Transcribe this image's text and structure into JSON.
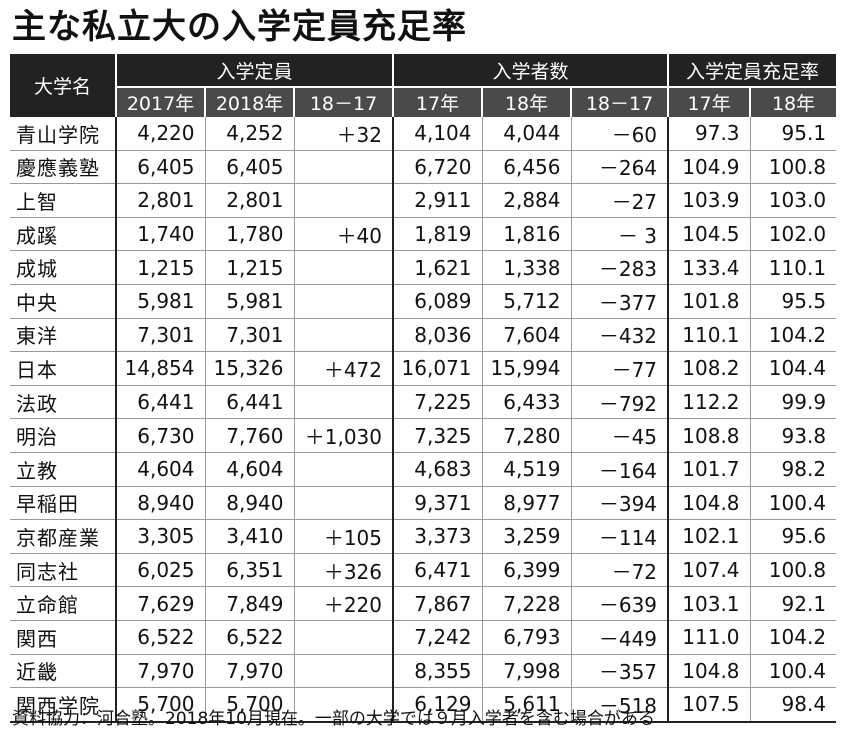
{
  "title": "主な私立大の入学定員充足率",
  "headers": {
    "university": "大学名",
    "capacity": "入学定員",
    "enrolled": "入学者数",
    "rate": "入学定員充足率",
    "cap_2017": "2017年",
    "cap_2018": "2018年",
    "cap_diff": "18－17",
    "enr_17": "17年",
    "enr_18": "18年",
    "enr_diff": "18－17",
    "rate_17": "17年",
    "rate_18": "18年"
  },
  "rows": [
    {
      "name": "青山学院",
      "cap17": "4,220",
      "cap18": "4,252",
      "capdiff": "＋32",
      "enr17": "4,104",
      "enr18": "4,044",
      "enrdiff": "－60",
      "rate17": "97.3",
      "rate18": "95.1"
    },
    {
      "name": "慶應義塾",
      "cap17": "6,405",
      "cap18": "6,405",
      "capdiff": "",
      "enr17": "6,720",
      "enr18": "6,456",
      "enrdiff": "－264",
      "rate17": "104.9",
      "rate18": "100.8"
    },
    {
      "name": "上智",
      "cap17": "2,801",
      "cap18": "2,801",
      "capdiff": "",
      "enr17": "2,911",
      "enr18": "2,884",
      "enrdiff": "－27",
      "rate17": "103.9",
      "rate18": "103.0"
    },
    {
      "name": "成蹊",
      "cap17": "1,740",
      "cap18": "1,780",
      "capdiff": "＋40",
      "enr17": "1,819",
      "enr18": "1,816",
      "enrdiff": "－ 3",
      "rate17": "104.5",
      "rate18": "102.0"
    },
    {
      "name": "成城",
      "cap17": "1,215",
      "cap18": "1,215",
      "capdiff": "",
      "enr17": "1,621",
      "enr18": "1,338",
      "enrdiff": "－283",
      "rate17": "133.4",
      "rate18": "110.1"
    },
    {
      "name": "中央",
      "cap17": "5,981",
      "cap18": "5,981",
      "capdiff": "",
      "enr17": "6,089",
      "enr18": "5,712",
      "enrdiff": "－377",
      "rate17": "101.8",
      "rate18": "95.5"
    },
    {
      "name": "東洋",
      "cap17": "7,301",
      "cap18": "7,301",
      "capdiff": "",
      "enr17": "8,036",
      "enr18": "7,604",
      "enrdiff": "－432",
      "rate17": "110.1",
      "rate18": "104.2"
    },
    {
      "name": "日本",
      "cap17": "14,854",
      "cap18": "15,326",
      "capdiff": "＋472",
      "enr17": "16,071",
      "enr18": "15,994",
      "enrdiff": "－77",
      "rate17": "108.2",
      "rate18": "104.4"
    },
    {
      "name": "法政",
      "cap17": "6,441",
      "cap18": "6,441",
      "capdiff": "",
      "enr17": "7,225",
      "enr18": "6,433",
      "enrdiff": "－792",
      "rate17": "112.2",
      "rate18": "99.9"
    },
    {
      "name": "明治",
      "cap17": "6,730",
      "cap18": "7,760",
      "capdiff": "＋1,030",
      "enr17": "7,325",
      "enr18": "7,280",
      "enrdiff": "－45",
      "rate17": "108.8",
      "rate18": "93.8"
    },
    {
      "name": "立教",
      "cap17": "4,604",
      "cap18": "4,604",
      "capdiff": "",
      "enr17": "4,683",
      "enr18": "4,519",
      "enrdiff": "－164",
      "rate17": "101.7",
      "rate18": "98.2"
    },
    {
      "name": "早稲田",
      "cap17": "8,940",
      "cap18": "8,940",
      "capdiff": "",
      "enr17": "9,371",
      "enr18": "8,977",
      "enrdiff": "－394",
      "rate17": "104.8",
      "rate18": "100.4"
    },
    {
      "name": "京都産業",
      "cap17": "3,305",
      "cap18": "3,410",
      "capdiff": "＋105",
      "enr17": "3,373",
      "enr18": "3,259",
      "enrdiff": "－114",
      "rate17": "102.1",
      "rate18": "95.6"
    },
    {
      "name": "同志社",
      "cap17": "6,025",
      "cap18": "6,351",
      "capdiff": "＋326",
      "enr17": "6,471",
      "enr18": "6,399",
      "enrdiff": "－72",
      "rate17": "107.4",
      "rate18": "100.8"
    },
    {
      "name": "立命館",
      "cap17": "7,629",
      "cap18": "7,849",
      "capdiff": "＋220",
      "enr17": "7,867",
      "enr18": "7,228",
      "enrdiff": "－639",
      "rate17": "103.1",
      "rate18": "92.1"
    },
    {
      "name": "関西",
      "cap17": "6,522",
      "cap18": "6,522",
      "capdiff": "",
      "enr17": "7,242",
      "enr18": "6,793",
      "enrdiff": "－449",
      "rate17": "111.0",
      "rate18": "104.2"
    },
    {
      "name": "近畿",
      "cap17": "7,970",
      "cap18": "7,970",
      "capdiff": "",
      "enr17": "8,355",
      "enr18": "7,998",
      "enrdiff": "－357",
      "rate17": "104.8",
      "rate18": "100.4"
    },
    {
      "name": "関西学院",
      "cap17": "5,700",
      "cap18": "5,700",
      "capdiff": "",
      "enr17": "6,129",
      "enr18": "5,611",
      "enrdiff": "－518",
      "rate17": "107.5",
      "rate18": "98.4"
    }
  ],
  "footnote": "資料協力：河合塾。2018年10月現在。一部の大学では９月入学者を含む場合がある"
}
